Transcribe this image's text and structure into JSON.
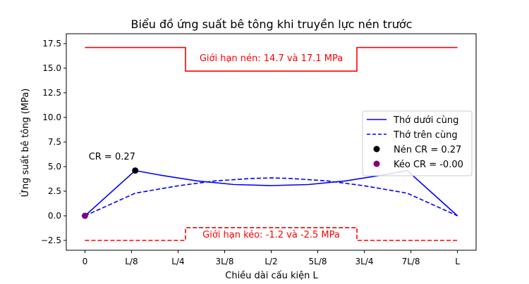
{
  "chart_data": {
    "type": "line",
    "title": "Biểu đồ ứng suất bê tông khi truyền lực nén trước",
    "xlabel": "Chiều dài cấu kiện L",
    "ylabel": "Ứng suất bê tông (MPa)",
    "x": [
      0,
      0.125,
      0.25,
      0.375,
      0.5,
      0.625,
      0.75,
      0.875,
      1
    ],
    "xticklabels": [
      "0",
      "L/8",
      "L/4",
      "3L/8",
      "L/2",
      "5L/8",
      "3L/4",
      "7L/8",
      "L"
    ],
    "xlim": [
      -0.05,
      1.05
    ],
    "ylim": [
      -3.5,
      18.5
    ],
    "yticks": [
      -2.5,
      0.0,
      2.5,
      5.0,
      7.5,
      10.0,
      12.5,
      15.0,
      17.5
    ],
    "yticklabels": [
      "−2.5",
      "0.0",
      "2.5",
      "5.0",
      "7.5",
      "10.0",
      "12.5",
      "15.0",
      "17.5"
    ],
    "grid": false,
    "legend_position": "center-right",
    "series": [
      {
        "name": "Thớ dưới cùng",
        "style": "solid",
        "color": "#0000ff",
        "points": [
          [
            0,
            0.0
          ],
          [
            0.135,
            4.6
          ],
          [
            0.2,
            4.15
          ],
          [
            0.3,
            3.55
          ],
          [
            0.4,
            3.18
          ],
          [
            0.5,
            3.07
          ],
          [
            0.6,
            3.18
          ],
          [
            0.7,
            3.55
          ],
          [
            0.8,
            4.15
          ],
          [
            0.865,
            4.6
          ],
          [
            1,
            0.0
          ]
        ]
      },
      {
        "name": "Thớ trên cùng",
        "style": "dashed",
        "color": "#0000ff",
        "points": [
          [
            0,
            0.0
          ],
          [
            0.135,
            2.3
          ],
          [
            0.25,
            3.05
          ],
          [
            0.35,
            3.55
          ],
          [
            0.45,
            3.8
          ],
          [
            0.5,
            3.85
          ],
          [
            0.55,
            3.8
          ],
          [
            0.65,
            3.55
          ],
          [
            0.75,
            3.05
          ],
          [
            0.865,
            2.3
          ],
          [
            1,
            0.0
          ]
        ]
      }
    ],
    "markers": [
      {
        "name": "Nén CR = 0.27",
        "x": 0.135,
        "y": 4.6,
        "color": "#000000"
      },
      {
        "name": "Kéo CR = -0.00",
        "x": 0.0,
        "y": 0.0,
        "color": "#800080"
      }
    ],
    "limit_lines": [
      {
        "style": "solid",
        "color": "#ff0000",
        "segments": [
          [
            0,
            17.1
          ],
          [
            0.27,
            17.1
          ],
          [
            0.27,
            14.7
          ],
          [
            0.73,
            14.7
          ],
          [
            0.73,
            17.1
          ],
          [
            1,
            17.1
          ]
        ]
      },
      {
        "style": "dashed",
        "color": "#ff0000",
        "segments": [
          [
            0,
            -2.5
          ],
          [
            0.27,
            -2.5
          ],
          [
            0.27,
            -1.2
          ],
          [
            0.73,
            -1.2
          ],
          [
            0.73,
            -2.5
          ],
          [
            1,
            -2.5
          ]
        ]
      }
    ],
    "annotations": [
      {
        "text": "CR = 0.27",
        "x": 0.01,
        "y": 5.7,
        "color": "#000000",
        "anchor": "start"
      },
      {
        "text": "Giới hạn nén: 14.7 và 17.1 MPa",
        "x": 0.5,
        "y": 15.7,
        "color": "#ff0000",
        "anchor": "middle"
      },
      {
        "text": "Giới hạn kéo: -1.2 và -2.5 MPa",
        "x": 0.5,
        "y": -2.2,
        "color": "#ff0000",
        "anchor": "middle"
      }
    ]
  }
}
